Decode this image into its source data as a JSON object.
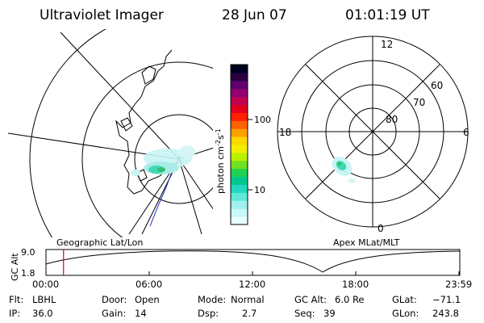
{
  "header": {
    "instrument": "Ultraviolet Imager",
    "date": "28 Jun 07",
    "time": "01:01:19 UT"
  },
  "geo_panel": {
    "label": "Geographic Lat/Lon"
  },
  "polar_panel": {
    "label": "Apex MLat/MLT",
    "mlt_labels": {
      "top": "12",
      "left": "18",
      "right": "6",
      "bottom": "0"
    },
    "lat_labels": [
      "60",
      "70",
      "80"
    ]
  },
  "colorbar": {
    "unit_label": "photon cm",
    "unit_exp1": "-2",
    "unit_mid": "s",
    "unit_exp2": "-1",
    "tick_labels": [
      "100",
      "10"
    ],
    "colors": [
      "#e8ffff",
      "#c8f8f8",
      "#a0f0f0",
      "#60e8d8",
      "#20d8c0",
      "#00c890",
      "#20d050",
      "#70e020",
      "#b8f000",
      "#f0f000",
      "#ffd800",
      "#ffa000",
      "#ff6000",
      "#ff2000",
      "#e00020",
      "#c00050",
      "#900070",
      "#600070",
      "#2a0040",
      "#000020"
    ]
  },
  "timeline": {
    "ylabel": "GC Alt",
    "ymax": "9.0",
    "ymin": "1.8",
    "ticks": [
      "00:00",
      "06:00",
      "12:00",
      "18:00",
      "23:59"
    ],
    "current_marker_hours": 1.02
  },
  "info": {
    "filter_label": "Flt:",
    "filter_value": "LBHL",
    "ip_label": "IP:",
    "ip_value": "36.0",
    "door_label": "Door:",
    "door_value": "Open",
    "gain_label": "Gain:",
    "gain_value": "14",
    "mode_label": "Mode:",
    "mode_value": "Normal",
    "dsp_label": "Dsp:",
    "dsp_value": "2.7",
    "gcalt_label": "GC Alt:",
    "gcalt_value": "6.0 Re",
    "seq_label": "Seq:",
    "seq_value": "39",
    "glat_label": "GLat:",
    "glat_value": "−71.1",
    "glon_label": "GLon:",
    "glon_value": "243.8"
  }
}
